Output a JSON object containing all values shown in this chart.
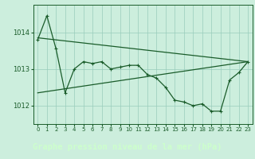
{
  "background_color": "#cceedd",
  "plot_bg_color": "#cceedd",
  "grid_color": "#99ccbb",
  "line_color": "#1a5c2a",
  "bottom_bg_color": "#336633",
  "bottom_text_color": "#ccffcc",
  "title": "Graphe pression niveau de la mer (hPa)",
  "ylabel_ticks": [
    1012,
    1013,
    1014
  ],
  "xlim": [
    -0.5,
    23.5
  ],
  "ylim": [
    1011.5,
    1014.75
  ],
  "xticks": [
    0,
    1,
    2,
    3,
    4,
    5,
    6,
    7,
    8,
    9,
    10,
    11,
    12,
    13,
    14,
    15,
    16,
    17,
    18,
    19,
    20,
    21,
    22,
    23
  ],
  "main_x": [
    0,
    1,
    2,
    3,
    4,
    5,
    6,
    7,
    8,
    9,
    10,
    11,
    12,
    13,
    14,
    15,
    16,
    17,
    18,
    19,
    20,
    21,
    22,
    23
  ],
  "main_y": [
    1013.8,
    1014.45,
    1013.55,
    1012.35,
    1013.0,
    1013.2,
    1013.15,
    1013.2,
    1013.0,
    1013.05,
    1013.1,
    1013.1,
    1012.85,
    1012.75,
    1012.5,
    1012.15,
    1012.1,
    1012.0,
    1012.05,
    1011.85,
    1011.85,
    1012.7,
    1012.9,
    1013.2
  ],
  "trend1_x": [
    0,
    23
  ],
  "trend1_y": [
    1013.85,
    1013.2
  ],
  "trend2_x": [
    0,
    23
  ],
  "trend2_y": [
    1012.35,
    1013.2
  ],
  "title_fontsize": 7.5,
  "ytick_fontsize": 6,
  "xtick_fontsize": 5
}
